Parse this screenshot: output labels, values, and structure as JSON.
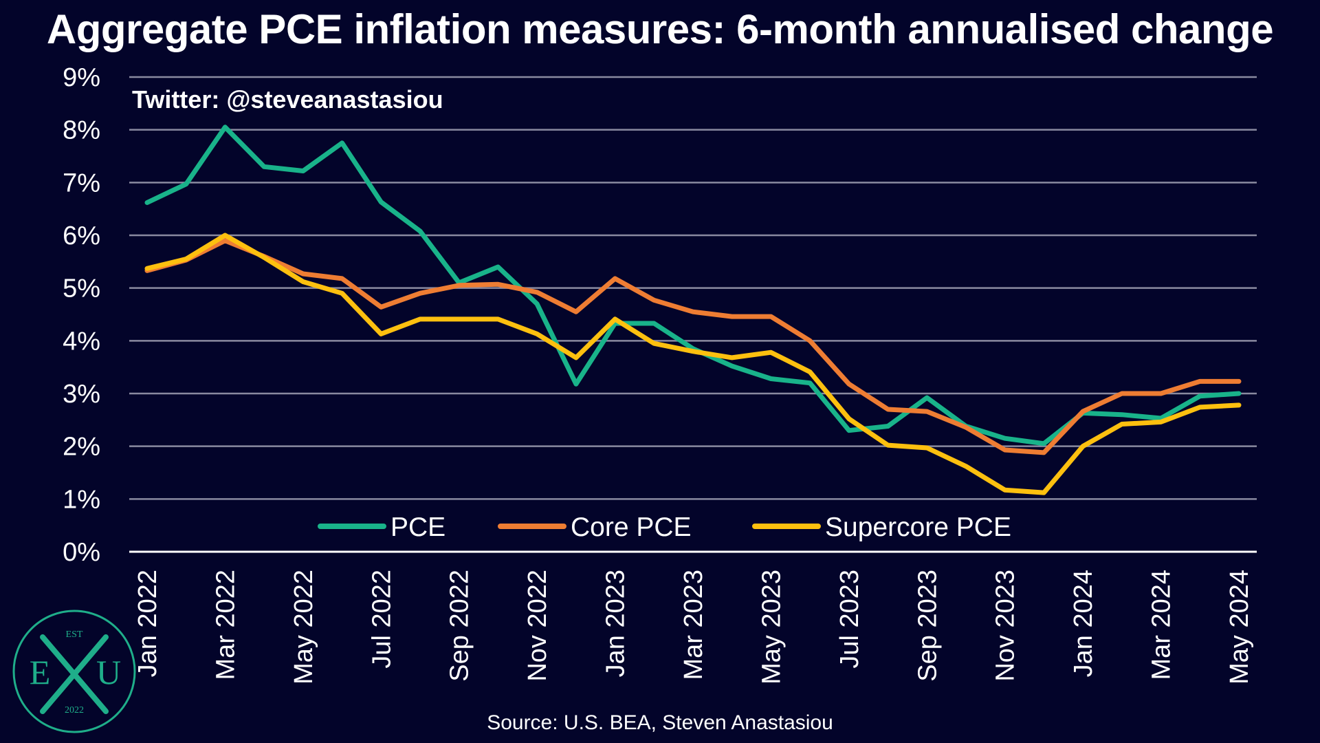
{
  "title": "Aggregate PCE inflation measures: 6-month annualised change",
  "watermark": "Twitter: @steveanastasiou",
  "source": "Source: U.S. BEA, Steven Anastasiou",
  "logo": {
    "top": "EST",
    "left": "E",
    "right": "U",
    "bottom": "2022",
    "color": "#1fae8a"
  },
  "colors": {
    "background": "#03042a",
    "grid": "#8a8aa0",
    "axis": "#ffffff"
  },
  "chart_data": {
    "type": "line",
    "title": "Aggregate PCE inflation measures: 6-month annualised change",
    "xlabel": "",
    "ylabel": "",
    "ylim": [
      0,
      9
    ],
    "yticks": [
      "0%",
      "1%",
      "2%",
      "3%",
      "4%",
      "5%",
      "6%",
      "7%",
      "8%",
      "9%"
    ],
    "grid": true,
    "legend_position": "bottom-center",
    "x": [
      "Jan 2022",
      "Feb 2022",
      "Mar 2022",
      "Apr 2022",
      "May 2022",
      "Jun 2022",
      "Jul 2022",
      "Aug 2022",
      "Sep 2022",
      "Oct 2022",
      "Nov 2022",
      "Dec 2022",
      "Jan 2023",
      "Feb 2023",
      "Mar 2023",
      "Apr 2023",
      "May 2023",
      "Jun 2023",
      "Jul 2023",
      "Aug 2023",
      "Sep 2023",
      "Oct 2023",
      "Nov 2023",
      "Dec 2023",
      "Jan 2024",
      "Feb 2024",
      "Mar 2024",
      "Apr 2024",
      "May 2024"
    ],
    "xtick_labels": [
      "Jan 2022",
      "Mar 2022",
      "May 2022",
      "Jul 2022",
      "Sep 2022",
      "Nov 2022",
      "Jan 2023",
      "Mar 2023",
      "May 2023",
      "Jul 2023",
      "Sep 2023",
      "Nov 2023",
      "Jan 2024",
      "Mar 2024",
      "May 2024"
    ],
    "series": [
      {
        "name": "PCE",
        "color": "#19b38a",
        "values": [
          6.62,
          6.97,
          8.05,
          7.3,
          7.22,
          7.75,
          6.63,
          6.08,
          5.1,
          5.4,
          4.7,
          3.18,
          4.33,
          4.33,
          3.85,
          3.52,
          3.28,
          3.2,
          2.3,
          2.38,
          2.92,
          2.38,
          2.15,
          2.05,
          2.63,
          2.6,
          2.53,
          2.95,
          3.0
        ]
      },
      {
        "name": "Core PCE",
        "color": "#ee7d33",
        "values": [
          5.33,
          5.53,
          5.9,
          5.6,
          5.27,
          5.18,
          4.64,
          4.9,
          5.05,
          5.07,
          4.92,
          4.55,
          5.18,
          4.77,
          4.55,
          4.46,
          4.46,
          4.0,
          3.18,
          2.7,
          2.66,
          2.36,
          1.93,
          1.88,
          2.66,
          3.0,
          3.0,
          3.23,
          3.23
        ]
      },
      {
        "name": "Supercore PCE",
        "color": "#fdc00f",
        "values": [
          5.37,
          5.55,
          6.0,
          5.58,
          5.12,
          4.9,
          4.13,
          4.41,
          4.41,
          4.41,
          4.13,
          3.68,
          4.41,
          3.95,
          3.8,
          3.68,
          3.78,
          3.41,
          2.52,
          2.02,
          1.97,
          1.62,
          1.17,
          1.12,
          2.0,
          2.42,
          2.46,
          2.74,
          2.78
        ]
      }
    ]
  }
}
